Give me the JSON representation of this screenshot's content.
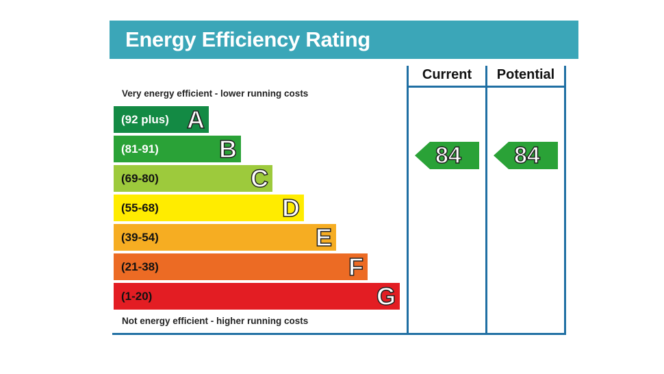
{
  "title": "Energy Efficiency Rating",
  "columns": {
    "current": "Current",
    "potential": "Potential"
  },
  "notes": {
    "top": "Very energy efficient - lower running costs",
    "bottom": "Not energy efficient - higher running costs"
  },
  "chart_data": {
    "type": "bar",
    "title": "Energy Efficiency Rating",
    "categories": [
      "A",
      "B",
      "C",
      "D",
      "E",
      "F",
      "G"
    ],
    "bands": [
      {
        "letter": "A",
        "range": "(92 plus)",
        "color": "#138a44",
        "text_color": "#ffffff"
      },
      {
        "letter": "B",
        "range": "(81-91)",
        "color": "#2aa237",
        "text_color": "#ffffff"
      },
      {
        "letter": "C",
        "range": "(69-80)",
        "color": "#9dca3c",
        "text_color": "#111111"
      },
      {
        "letter": "D",
        "range": "(55-68)",
        "color": "#ffec00",
        "text_color": "#111111"
      },
      {
        "letter": "E",
        "range": "(39-54)",
        "color": "#f6ad22",
        "text_color": "#111111"
      },
      {
        "letter": "F",
        "range": "(21-38)",
        "color": "#ec6b24",
        "text_color": "#111111"
      },
      {
        "letter": "G",
        "range": "(1-20)",
        "color": "#e31d23",
        "text_color": "#111111"
      }
    ],
    "current": {
      "value": "84",
      "band": "B",
      "color": "#2aa237"
    },
    "potential": {
      "value": "84",
      "band": "B",
      "color": "#2aa237"
    }
  }
}
